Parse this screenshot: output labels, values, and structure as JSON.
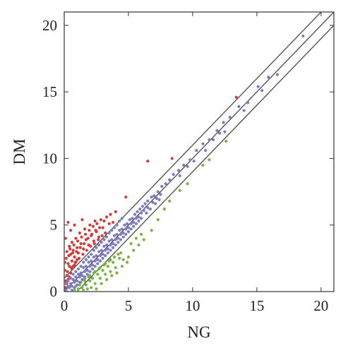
{
  "chart_data": {
    "type": "scatter",
    "xlabel": "NG",
    "ylabel": "DM",
    "xlim": [
      0,
      21
    ],
    "ylim": [
      0,
      21
    ],
    "grid": false,
    "legend": "none",
    "xticks": [
      0,
      5,
      10,
      15,
      20
    ],
    "yticks": [
      0,
      5,
      10,
      15,
      20
    ],
    "xtick_labels": [
      "0",
      "5",
      "10",
      "15",
      "20"
    ],
    "ytick_labels": [
      "0",
      "5",
      "10",
      "15",
      "20"
    ],
    "reference_lines": [
      {
        "x": [
          0,
          21
        ],
        "y": [
          1,
          22
        ]
      },
      {
        "x": [
          0,
          21
        ],
        "y": [
          0,
          21
        ]
      },
      {
        "x": [
          0,
          21
        ],
        "y": [
          -1,
          20
        ]
      }
    ],
    "colors": {
      "upregulated": "#d33b3b",
      "unchanged": "#7b7bc4",
      "downregulated": "#7ab342",
      "line": "#555555"
    },
    "series": [
      {
        "color_key": "upregulated",
        "points": [
          [
            0.1,
            0.8
          ],
          [
            0.2,
            1.2
          ],
          [
            0.05,
            1.6
          ],
          [
            0.3,
            2.1
          ],
          [
            0.15,
            2.5
          ],
          [
            0.4,
            1.9
          ],
          [
            0.5,
            2.8
          ],
          [
            0.6,
            2.3
          ],
          [
            0.7,
            3.1
          ],
          [
            0.8,
            2.6
          ],
          [
            1.0,
            3.3
          ],
          [
            1.1,
            2.9
          ],
          [
            1.3,
            3.6
          ],
          [
            1.5,
            3.2
          ],
          [
            1.7,
            3.9
          ],
          [
            1.9,
            3.5
          ],
          [
            2.1,
            4.2
          ],
          [
            2.3,
            3.8
          ],
          [
            2.5,
            4.5
          ],
          [
            2.7,
            4.1
          ],
          [
            3.0,
            4.8
          ],
          [
            3.2,
            4.4
          ],
          [
            3.5,
            5.1
          ],
          [
            0.2,
            3.0
          ],
          [
            0.4,
            3.4
          ],
          [
            0.6,
            3.7
          ],
          [
            0.9,
            4.0
          ],
          [
            1.2,
            4.4
          ],
          [
            0.1,
            4.0
          ],
          [
            0.3,
            5.2
          ],
          [
            1.6,
            4.7
          ],
          [
            2.0,
            5.0
          ],
          [
            2.4,
            5.3
          ],
          [
            0.5,
            4.6
          ],
          [
            0.8,
            5.0
          ],
          [
            1.4,
            5.4
          ],
          [
            4.8,
            7.1
          ],
          [
            6.5,
            9.8
          ],
          [
            8.4,
            10.0
          ],
          [
            13.4,
            14.6
          ],
          [
            0.05,
            2.2
          ],
          [
            0.25,
            1.5
          ],
          [
            0.35,
            2.7
          ],
          [
            0.45,
            3.2
          ],
          [
            0.55,
            1.8
          ],
          [
            0.65,
            2.9
          ],
          [
            0.75,
            3.5
          ],
          [
            0.85,
            2.2
          ],
          [
            0.95,
            3.0
          ],
          [
            1.05,
            3.8
          ],
          [
            1.15,
            2.5
          ],
          [
            1.25,
            3.3
          ],
          [
            1.35,
            4.1
          ],
          [
            1.45,
            2.8
          ],
          [
            1.55,
            3.6
          ],
          [
            1.65,
            4.3
          ],
          [
            1.75,
            3.1
          ],
          [
            1.85,
            4.0
          ],
          [
            1.95,
            4.6
          ],
          [
            2.05,
            3.4
          ],
          [
            2.15,
            4.3
          ],
          [
            2.25,
            4.9
          ],
          [
            2.35,
            3.6
          ],
          [
            2.45,
            4.6
          ],
          [
            2.55,
            5.1
          ],
          [
            2.65,
            3.9
          ],
          [
            2.75,
            4.8
          ],
          [
            2.85,
            5.4
          ],
          [
            2.95,
            4.2
          ],
          [
            3.1,
            5.3
          ],
          [
            3.3,
            5.6
          ],
          [
            3.6,
            5.8
          ],
          [
            3.8,
            5.2
          ],
          [
            4.0,
            6.0
          ],
          [
            0.1,
            0.3
          ],
          [
            0.2,
            0.6
          ],
          [
            0.3,
            0.9
          ],
          [
            0.4,
            1.1
          ],
          [
            0.5,
            1.4
          ],
          [
            0.6,
            1.7
          ],
          [
            0.7,
            1.9
          ],
          [
            0.8,
            2.0
          ],
          [
            0.9,
            2.2
          ],
          [
            1.0,
            2.4
          ]
        ]
      },
      {
        "color_key": "downregulated",
        "points": [
          [
            0.8,
            0.1
          ],
          [
            1.1,
            0.2
          ],
          [
            1.4,
            0.3
          ],
          [
            1.7,
            0.5
          ],
          [
            2.0,
            0.8
          ],
          [
            2.2,
            1.0
          ],
          [
            2.4,
            0.6
          ],
          [
            2.6,
            1.3
          ],
          [
            2.8,
            1.0
          ],
          [
            3.0,
            1.6
          ],
          [
            3.2,
            1.3
          ],
          [
            3.4,
            1.9
          ],
          [
            3.6,
            1.5
          ],
          [
            3.8,
            2.2
          ],
          [
            4.0,
            1.8
          ],
          [
            4.3,
            2.5
          ],
          [
            4.6,
            2.4
          ],
          [
            5.0,
            2.6
          ],
          [
            5.4,
            3.1
          ],
          [
            5.8,
            3.5
          ],
          [
            6.2,
            3.9
          ],
          [
            6.8,
            4.6
          ],
          [
            7.3,
            5.4
          ],
          [
            7.8,
            6.2
          ],
          [
            8.2,
            6.8
          ],
          [
            9.0,
            7.6
          ],
          [
            9.6,
            8.1
          ],
          [
            10.8,
            9.5
          ],
          [
            11.3,
            9.9
          ],
          [
            12.6,
            11.3
          ],
          [
            1.5,
            0.1
          ],
          [
            1.8,
            0.2
          ],
          [
            2.1,
            0.3
          ],
          [
            2.5,
            0.2
          ],
          [
            2.9,
            0.6
          ],
          [
            3.3,
            0.9
          ],
          [
            3.7,
            1.2
          ],
          [
            4.1,
            1.4
          ],
          [
            4.5,
            1.9
          ],
          [
            4.9,
            2.2
          ],
          [
            1.2,
            0.5
          ],
          [
            1.6,
            0.8
          ],
          [
            1.9,
            1.1
          ],
          [
            2.3,
            1.4
          ],
          [
            2.7,
            1.7
          ],
          [
            3.1,
            2.0
          ],
          [
            3.5,
            2.3
          ],
          [
            3.9,
            2.6
          ],
          [
            4.4,
            2.9
          ],
          [
            0.9,
            0.4
          ],
          [
            1.3,
            0.7
          ],
          [
            1.6,
            1.0
          ],
          [
            2.0,
            1.2
          ],
          [
            2.4,
            1.5
          ],
          [
            2.8,
            1.8
          ],
          [
            3.2,
            2.1
          ],
          [
            3.6,
            2.4
          ],
          [
            4.2,
            2.8
          ],
          [
            5.2,
            3.6
          ],
          [
            5.6,
            4.0
          ],
          [
            6.0,
            4.3
          ]
        ]
      },
      {
        "color_key": "unchanged",
        "points": [
          [
            0.1,
            0.1
          ],
          [
            0.3,
            0.4
          ],
          [
            0.5,
            0.6
          ],
          [
            0.7,
            0.9
          ],
          [
            0.9,
            1.1
          ],
          [
            1.1,
            1.3
          ],
          [
            1.3,
            1.4
          ],
          [
            1.5,
            1.8
          ],
          [
            1.7,
            1.9
          ],
          [
            1.9,
            2.2
          ],
          [
            2.1,
            2.3
          ],
          [
            2.3,
            2.6
          ],
          [
            2.5,
            2.7
          ],
          [
            2.7,
            3.0
          ],
          [
            2.9,
            3.1
          ],
          [
            3.1,
            3.4
          ],
          [
            3.3,
            3.5
          ],
          [
            3.5,
            3.8
          ],
          [
            3.7,
            3.9
          ],
          [
            3.9,
            4.2
          ],
          [
            4.1,
            4.3
          ],
          [
            4.3,
            4.6
          ],
          [
            4.5,
            4.7
          ],
          [
            4.7,
            5.0
          ],
          [
            4.9,
            5.1
          ],
          [
            5.1,
            5.4
          ],
          [
            5.3,
            5.5
          ],
          [
            5.5,
            5.8
          ],
          [
            5.7,
            6.0
          ],
          [
            5.9,
            6.2
          ],
          [
            6.1,
            6.4
          ],
          [
            6.3,
            6.6
          ],
          [
            6.5,
            6.8
          ],
          [
            6.8,
            7.1
          ],
          [
            7.0,
            7.2
          ],
          [
            7.3,
            7.5
          ],
          [
            7.6,
            7.9
          ],
          [
            7.9,
            8.1
          ],
          [
            8.2,
            8.4
          ],
          [
            8.5,
            8.8
          ],
          [
            8.9,
            9.1
          ],
          [
            9.3,
            9.5
          ],
          [
            9.8,
            9.9
          ],
          [
            10.3,
            10.6
          ],
          [
            10.8,
            11.1
          ],
          [
            11.3,
            11.4
          ],
          [
            11.9,
            12.1
          ],
          [
            12.4,
            12.7
          ],
          [
            12.9,
            13.1
          ],
          [
            13.6,
            13.9
          ],
          [
            14.3,
            14.2
          ],
          [
            15.1,
            15.4
          ],
          [
            15.9,
            16.1
          ],
          [
            16.6,
            16.3
          ],
          [
            18.6,
            19.2
          ],
          [
            0.2,
            0.0
          ],
          [
            0.4,
            0.3
          ],
          [
            0.6,
            0.4
          ],
          [
            0.8,
            0.7
          ],
          [
            1.0,
            0.8
          ],
          [
            1.2,
            1.1
          ],
          [
            1.4,
            1.2
          ],
          [
            1.6,
            1.5
          ],
          [
            1.8,
            1.6
          ],
          [
            2.0,
            1.9
          ],
          [
            2.2,
            2.0
          ],
          [
            2.4,
            2.3
          ],
          [
            2.6,
            2.4
          ],
          [
            2.8,
            2.7
          ],
          [
            3.0,
            2.8
          ],
          [
            3.2,
            3.1
          ],
          [
            3.4,
            3.2
          ],
          [
            3.6,
            3.5
          ],
          [
            3.8,
            3.6
          ],
          [
            4.0,
            3.9
          ],
          [
            4.2,
            4.0
          ],
          [
            4.4,
            4.3
          ],
          [
            4.6,
            4.4
          ],
          [
            4.8,
            4.7
          ],
          [
            5.0,
            4.8
          ],
          [
            5.2,
            5.1
          ],
          [
            5.4,
            5.2
          ],
          [
            5.6,
            5.5
          ],
          [
            5.8,
            5.6
          ],
          [
            6.0,
            5.9
          ],
          [
            6.2,
            6.1
          ],
          [
            6.5,
            6.3
          ],
          [
            6.9,
            6.7
          ],
          [
            7.2,
            7.0
          ],
          [
            7.5,
            7.3
          ],
          [
            0.1,
            0.6
          ],
          [
            0.3,
            0.8
          ],
          [
            0.5,
            1.0
          ],
          [
            0.7,
            1.3
          ],
          [
            0.9,
            1.5
          ],
          [
            1.1,
            1.7
          ],
          [
            1.3,
            1.9
          ],
          [
            1.5,
            2.2
          ],
          [
            1.7,
            2.4
          ],
          [
            1.9,
            2.6
          ],
          [
            2.1,
            2.8
          ],
          [
            2.3,
            3.1
          ],
          [
            2.5,
            3.3
          ],
          [
            2.7,
            3.5
          ],
          [
            2.9,
            3.7
          ],
          [
            3.1,
            3.9
          ],
          [
            3.3,
            4.1
          ],
          [
            3.5,
            4.4
          ],
          [
            3.7,
            4.6
          ],
          [
            3.9,
            4.8
          ],
          [
            4.1,
            5.0
          ],
          [
            4.3,
            5.3
          ],
          [
            4.5,
            5.5
          ],
          [
            0.6,
            0.1
          ],
          [
            0.8,
            0.3
          ],
          [
            1.0,
            0.5
          ],
          [
            1.2,
            0.7
          ],
          [
            1.4,
            0.9
          ],
          [
            1.6,
            1.1
          ],
          [
            1.8,
            1.3
          ],
          [
            2.0,
            1.5
          ],
          [
            2.2,
            1.7
          ],
          [
            2.4,
            1.9
          ],
          [
            2.6,
            2.1
          ],
          [
            2.8,
            2.3
          ],
          [
            3.0,
            2.5
          ],
          [
            3.2,
            2.7
          ],
          [
            3.4,
            2.9
          ],
          [
            3.6,
            3.1
          ],
          [
            3.8,
            3.3
          ],
          [
            4.0,
            3.5
          ],
          [
            4.2,
            3.7
          ],
          [
            4.4,
            3.9
          ],
          [
            4.6,
            4.1
          ],
          [
            4.8,
            4.3
          ],
          [
            5.0,
            4.5
          ],
          [
            5.2,
            4.7
          ],
          [
            5.4,
            4.9
          ],
          [
            5.6,
            5.1
          ],
          [
            5.8,
            5.3
          ],
          [
            6.0,
            5.5
          ],
          [
            6.4,
            5.9
          ],
          [
            6.7,
            6.2
          ],
          [
            7.1,
            6.6
          ],
          [
            7.4,
            6.9
          ],
          [
            9.0,
            8.7
          ],
          [
            9.6,
            9.4
          ],
          [
            10.1,
            9.8
          ],
          [
            11.0,
            10.6
          ],
          [
            11.6,
            11.4
          ],
          [
            12.1,
            11.9
          ],
          [
            12.5,
            12.0
          ],
          [
            14.0,
            13.6
          ],
          [
            15.4,
            15.1
          ]
        ]
      }
    ]
  }
}
